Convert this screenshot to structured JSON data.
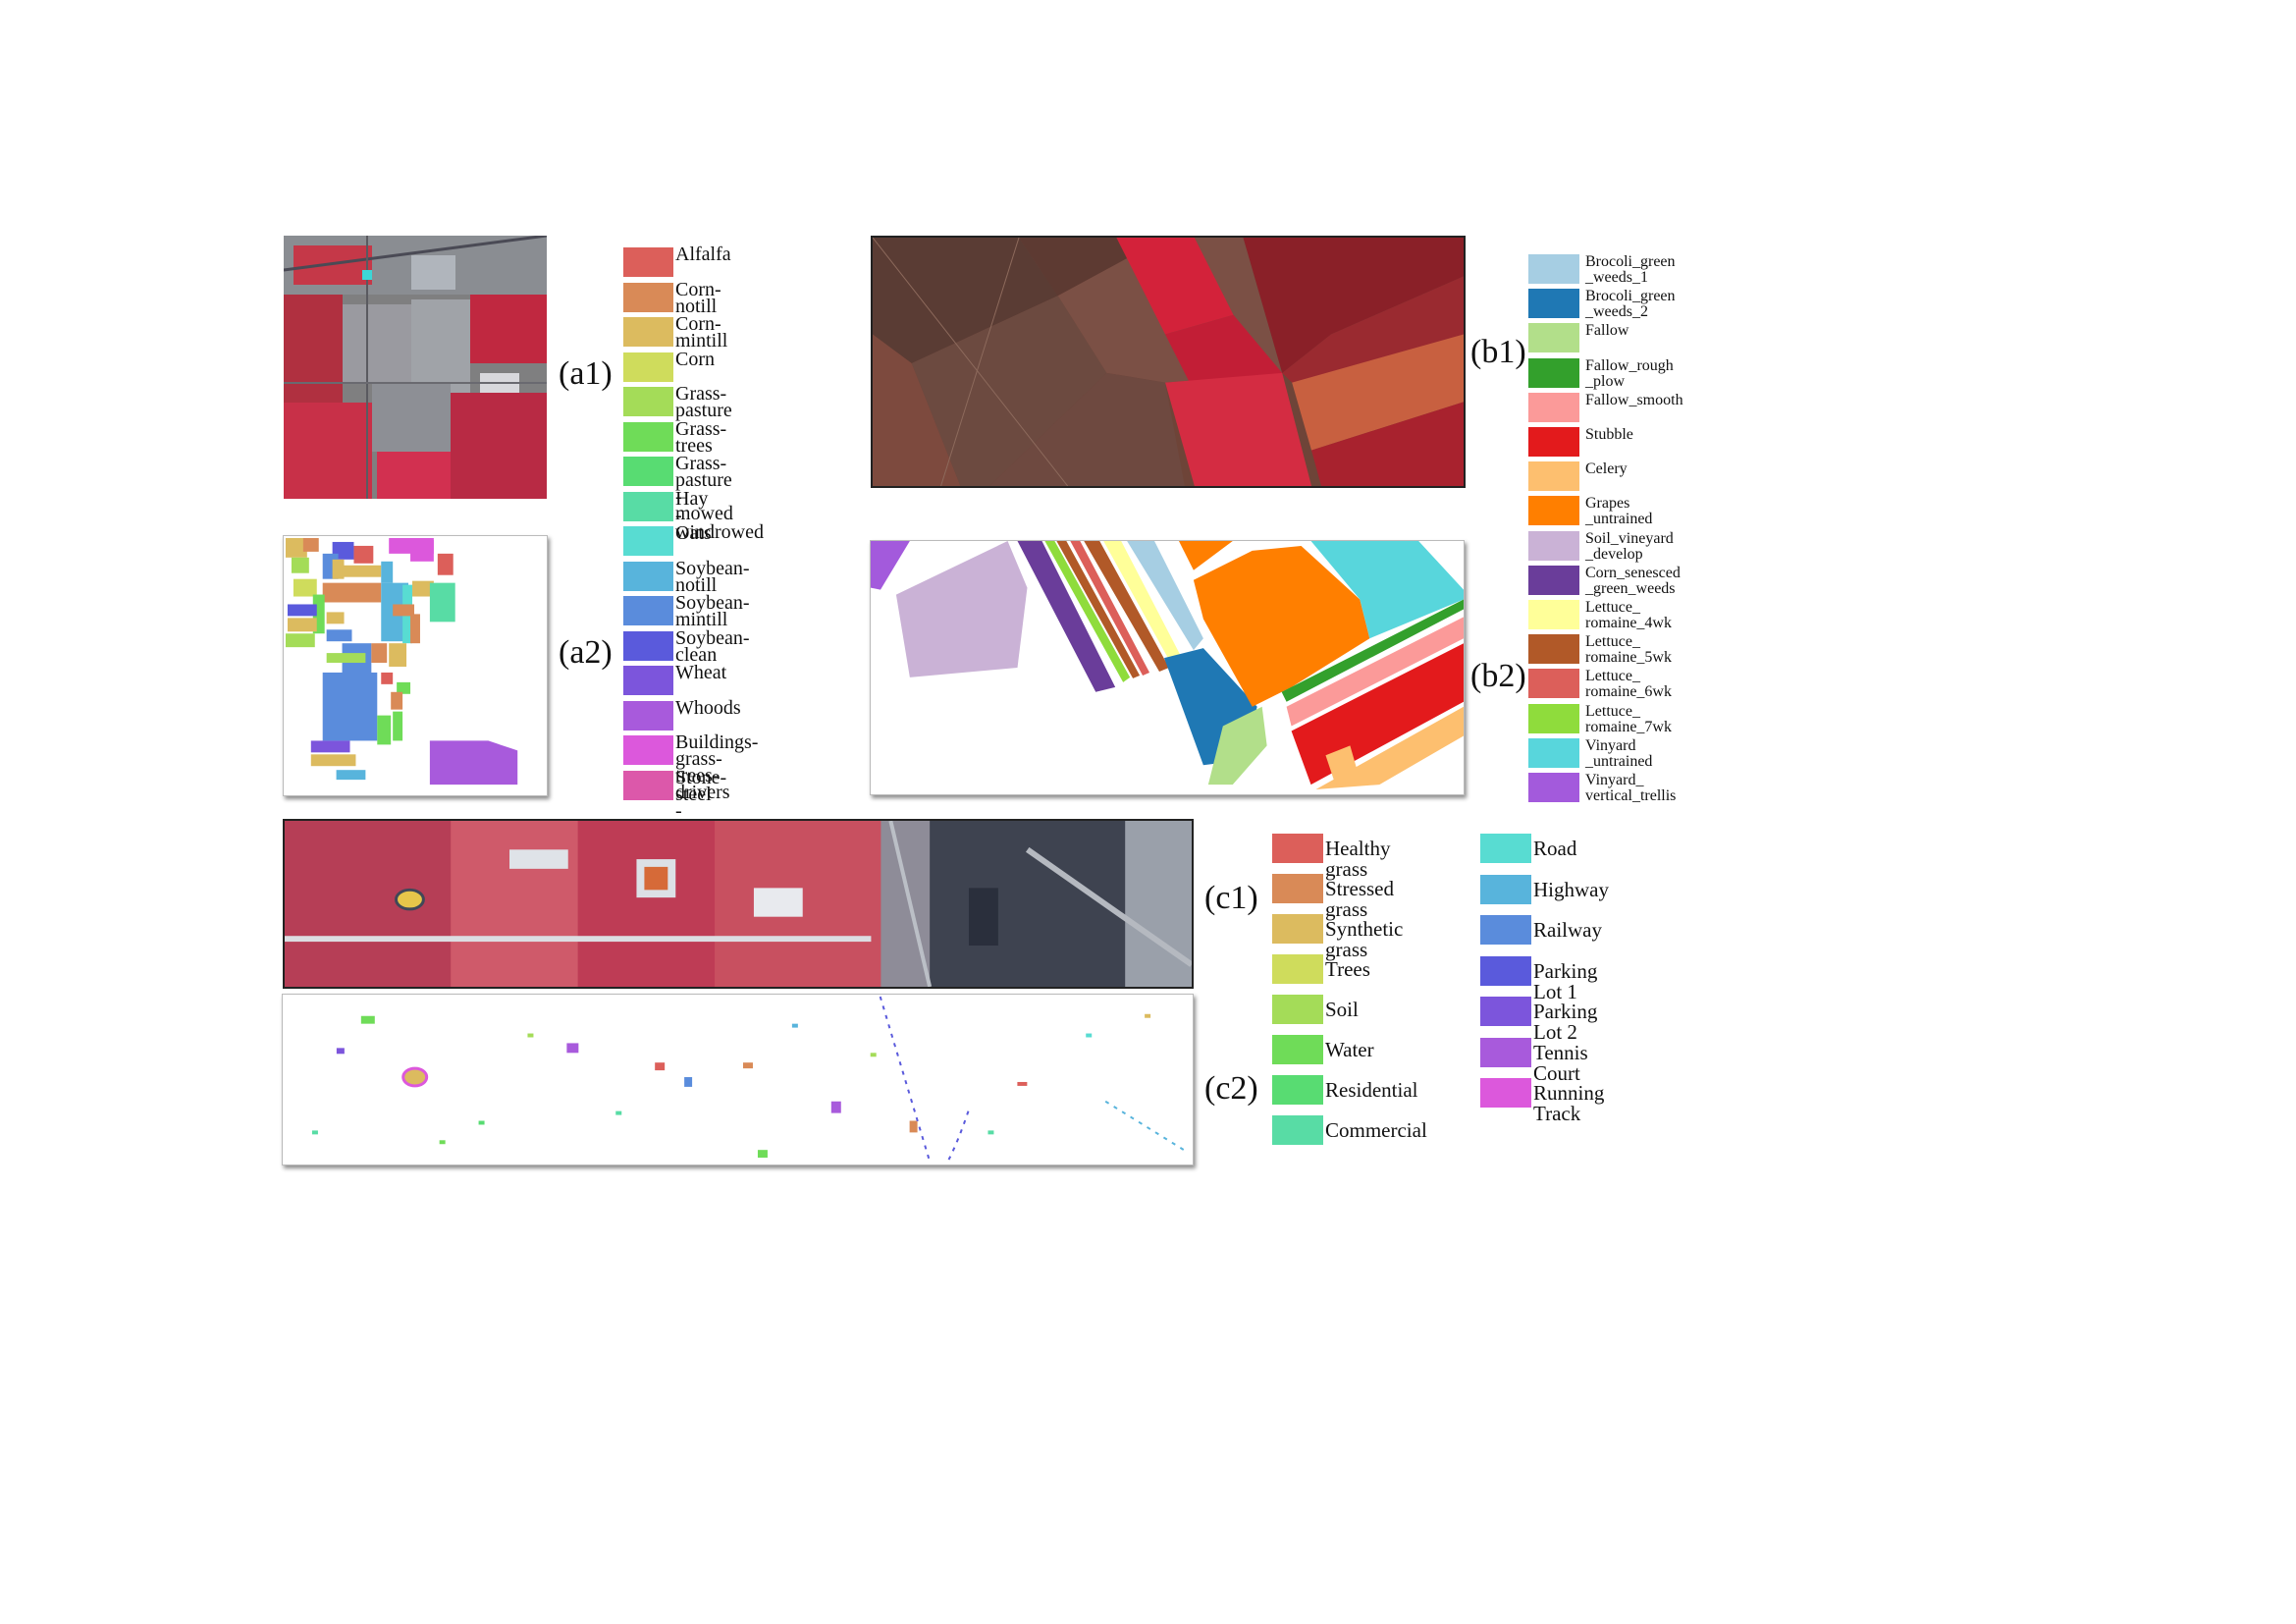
{
  "panels": {
    "a1": "(a1)",
    "a2": "(a2)",
    "b1": "(b1)",
    "b2": "(b2)",
    "c1": "(c1)",
    "c2": "(c2)"
  },
  "legend_a": [
    {
      "label": "Alfalfa",
      "color": "#dc5f5a"
    },
    {
      "label": "Corn-notill",
      "color": "#d98a57"
    },
    {
      "label": "Corn-mintill",
      "color": "#dcbb5f"
    },
    {
      "label": "Corn",
      "color": "#cfdc5c"
    },
    {
      "label": "Grass-pasture",
      "color": "#a4dc58"
    },
    {
      "label": "Grass-trees",
      "color": "#6fdc58"
    },
    {
      "label": "Grass-pasture\n-mowed",
      "color": "#58dc72"
    },
    {
      "label": "Hay\n-windrowed",
      "color": "#58dca5"
    },
    {
      "label": "Oats",
      "color": "#58dcd2"
    },
    {
      "label": "Soybean-notill",
      "color": "#58b4dc"
    },
    {
      "label": "Soybean-mintill",
      "color": "#5a8cdc"
    },
    {
      "label": "Soybean-clean",
      "color": "#5a5adc"
    },
    {
      "label": "Wheat",
      "color": "#7c55dc"
    },
    {
      "label": "Whoods",
      "color": "#a85adc"
    },
    {
      "label": "Buildings-grass-\ntrees-drivers",
      "color": "#dc58dc"
    },
    {
      "label": "Stone-steel\n-towers",
      "color": "#dc58aa"
    }
  ],
  "legend_b": [
    {
      "label": "Brocoli_green\n_weeds_1",
      "color": "#a6cee3"
    },
    {
      "label": "Brocoli_green\n_weeds_2",
      "color": "#1f78b4"
    },
    {
      "label": "Fallow",
      "color": "#b2df8a"
    },
    {
      "label": "Fallow_rough\n_plow",
      "color": "#33a02c"
    },
    {
      "label": "Fallow_smooth",
      "color": "#fb9a99"
    },
    {
      "label": "Stubble",
      "color": "#e31a1c"
    },
    {
      "label": "Celery",
      "color": "#fdbf6f"
    },
    {
      "label": "Grapes\n_untrained",
      "color": "#ff7f00"
    },
    {
      "label": "Soil_vineyard\n_develop",
      "color": "#cab2d6"
    },
    {
      "label": "Corn_senesced\n_green_weeds",
      "color": "#6a3d9a"
    },
    {
      "label": "Lettuce_\nromaine_4wk",
      "color": "#ffff99"
    },
    {
      "label": "Lettuce_\nromaine_5wk",
      "color": "#b15928"
    },
    {
      "label": "Lettuce_\nromaine_6wk",
      "color": "#dc5f5a"
    },
    {
      "label": "Lettuce_\nromaine_7wk",
      "color": "#8fdc3c"
    },
    {
      "label": "Vinyard\n_untrained",
      "color": "#58d6dc"
    },
    {
      "label": "Vinyard_\nvertical_trellis",
      "color": "#a35adc"
    }
  ],
  "legend_c_left": [
    {
      "label": "Healthy grass",
      "color": "#dc5f5a"
    },
    {
      "label": "Stressed grass",
      "color": "#d98a57"
    },
    {
      "label": "Synthetic grass",
      "color": "#dcbb5f"
    },
    {
      "label": "Trees",
      "color": "#cfdc5c"
    },
    {
      "label": "Soil",
      "color": "#a4dc58"
    },
    {
      "label": "Water",
      "color": "#6fdc58"
    },
    {
      "label": "Residential",
      "color": "#58dc72"
    },
    {
      "label": "Commercial",
      "color": "#58dca5"
    }
  ],
  "legend_c_right": [
    {
      "label": "Road",
      "color": "#58dcd2"
    },
    {
      "label": "Highway",
      "color": "#58b4dc"
    },
    {
      "label": "Railway",
      "color": "#5a8cdc"
    },
    {
      "label": "Parking Lot 1",
      "color": "#5a5adc"
    },
    {
      "label": "Parking Lot 2",
      "color": "#7c55dc"
    },
    {
      "label": "Tennis Court",
      "color": "#a85adc"
    },
    {
      "label": "Running Track",
      "color": "#dc58dc"
    }
  ]
}
